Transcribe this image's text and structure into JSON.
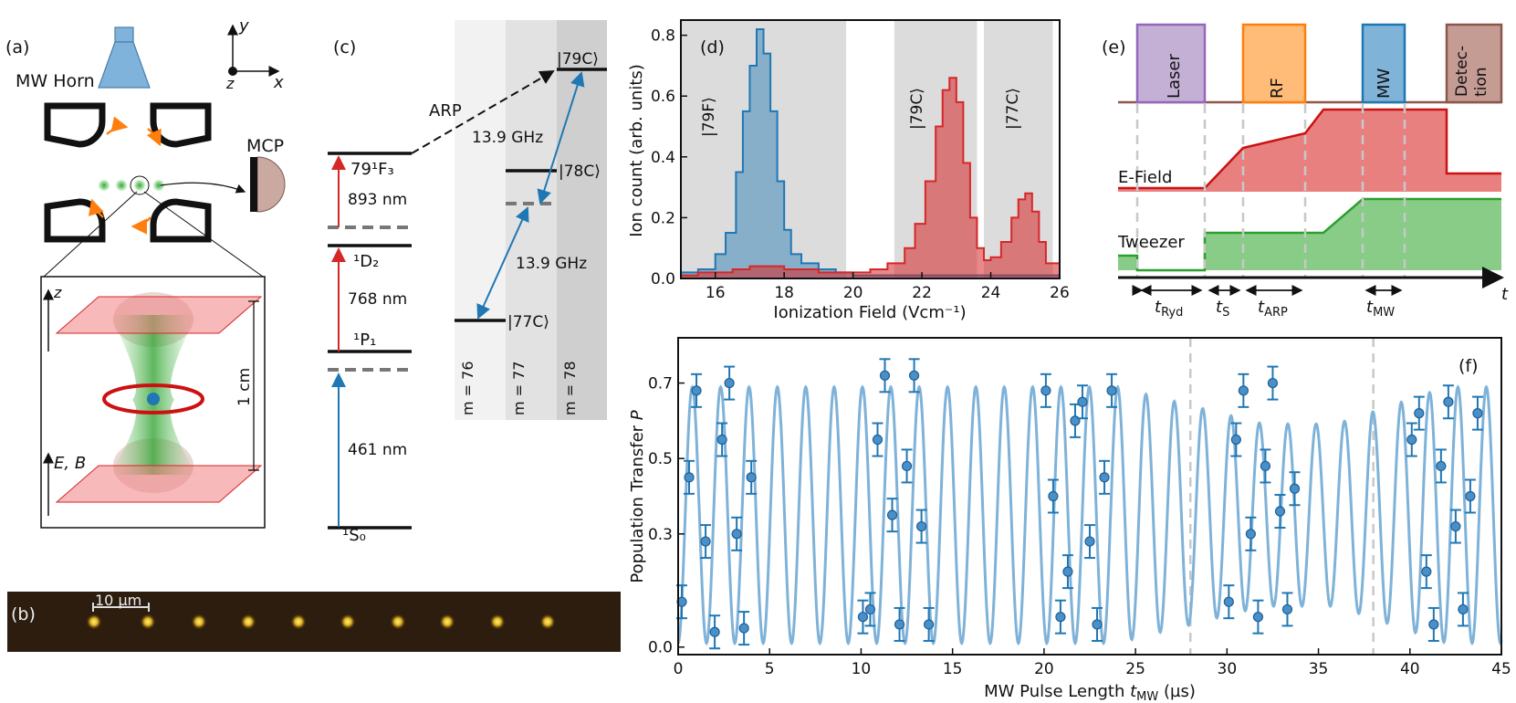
{
  "panel_labels": {
    "a": "(a)",
    "b": "(b)",
    "c": "(c)",
    "d": "(d)",
    "e": "(e)",
    "f": "(f)"
  },
  "panel_a": {
    "horn_label": "MW Horn",
    "mcp_label": "MCP",
    "axis_y": "y",
    "axis_x": "x",
    "axis_z": "z",
    "inset_axis_z": "z",
    "inset_field_label": "E, B",
    "scale_label": "1 cm"
  },
  "panel_b": {
    "scale_label": "10 µm"
  },
  "panel_c": {
    "levels": {
      "s0": "¹S₀",
      "p1": "¹P₁",
      "d2": "¹D₂",
      "f3": "79¹F₃"
    },
    "wavelengths": {
      "w1": "461 nm",
      "w2": "768 nm",
      "w3": "893 nm"
    },
    "arp_label": "ARP",
    "freq_upper": "13.9 GHz",
    "freq_lower": "13.9 GHz",
    "states": {
      "s79": "|79C⟩",
      "s78": "|78C⟩",
      "s77": "|77C⟩"
    },
    "columns": [
      "m = 76",
      "m = 77",
      "m = 78"
    ]
  },
  "panel_d": {
    "xlabel": "Ionization Field (Vcm⁻¹)",
    "ylabel": "Ion count (arb. units)",
    "xticks": [
      "16",
      "18",
      "20",
      "22",
      "24",
      "26"
    ],
    "yticks": [
      "0.0",
      "0.2",
      "0.4",
      "0.6",
      "0.8"
    ],
    "region_labels": [
      "|79F⟩",
      "|79C⟩",
      "|77C⟩"
    ]
  },
  "panel_e": {
    "pulses": [
      "Laser",
      "RF",
      "MW",
      "Detec-",
      "tion"
    ],
    "row_labels": {
      "efield": "E-Field",
      "tweezer": "Tweezer"
    },
    "time_axis": "t",
    "intervals": [
      "t",
      "Ryd",
      "t",
      "S",
      "t",
      "ARP",
      "t",
      "MW"
    ]
  },
  "panel_f": {
    "xlabel_pre": "MW Pulse Length ",
    "xlabel_var": "t",
    "xlabel_sub": "MW",
    "xlabel_unit": " (µs)",
    "ylabel_pre": "Population Transfer ",
    "ylabel_var": "P",
    "xticks": [
      "0",
      "5",
      "10",
      "15",
      "20",
      "25",
      "30",
      "35",
      "40",
      "45"
    ],
    "yticks": [
      "0.0",
      "0.3",
      "0.5",
      "0.7"
    ]
  },
  "colors": {
    "blue": "#1f77b4",
    "red": "#d62728",
    "green": "#2ca02c",
    "purple": "#9467bd",
    "orange": "#ff7f0e",
    "brown": "#8c564b"
  },
  "chart_data": [
    {
      "type": "area",
      "title": "(d)",
      "xlabel": "Ionization Field (Vcm⁻¹)",
      "ylabel": "Ion count (arb. units)",
      "xlim": [
        15,
        26
      ],
      "ylim": [
        0,
        0.85
      ],
      "shaded_regions": [
        {
          "label": "|79F⟩",
          "x": [
            15,
            19.8
          ]
        },
        {
          "label": "|79C⟩",
          "x": [
            21.2,
            23.6
          ]
        },
        {
          "label": "|77C⟩",
          "x": [
            23.8,
            25.8
          ]
        }
      ],
      "series": [
        {
          "name": "blue",
          "color": "#1f77b4",
          "x": [
            15.0,
            15.5,
            16.0,
            16.3,
            16.6,
            16.8,
            17.0,
            17.2,
            17.4,
            17.6,
            17.8,
            18.0,
            18.2,
            18.5,
            19.0,
            19.5,
            20.0,
            20.5,
            21.0,
            21.5,
            22.0,
            22.5,
            23.0,
            23.5,
            24.0,
            24.5,
            25.0,
            25.5,
            26.0
          ],
          "values": [
            0.02,
            0.03,
            0.08,
            0.15,
            0.35,
            0.55,
            0.7,
            0.82,
            0.74,
            0.55,
            0.32,
            0.16,
            0.08,
            0.05,
            0.03,
            0.02,
            0.01,
            0.01,
            0.01,
            0.01,
            0.01,
            0.01,
            0.01,
            0.01,
            0.01,
            0.01,
            0.01,
            0.01,
            0.0
          ]
        },
        {
          "name": "red",
          "color": "#d62728",
          "x": [
            15.0,
            15.5,
            16.0,
            16.5,
            17.0,
            17.5,
            18.0,
            18.5,
            19.0,
            19.5,
            20.0,
            20.5,
            21.0,
            21.5,
            21.8,
            22.1,
            22.4,
            22.6,
            22.8,
            23.0,
            23.2,
            23.4,
            23.6,
            23.8,
            24.0,
            24.3,
            24.6,
            24.8,
            25.0,
            25.2,
            25.4,
            25.6,
            26.0
          ],
          "values": [
            0.01,
            0.02,
            0.02,
            0.03,
            0.04,
            0.04,
            0.03,
            0.03,
            0.02,
            0.02,
            0.02,
            0.03,
            0.05,
            0.1,
            0.18,
            0.32,
            0.5,
            0.62,
            0.66,
            0.58,
            0.38,
            0.2,
            0.1,
            0.06,
            0.07,
            0.12,
            0.2,
            0.26,
            0.28,
            0.22,
            0.12,
            0.05,
            0.0
          ]
        }
      ]
    },
    {
      "type": "line",
      "title": "(f)",
      "xlabel": "MW Pulse Length tMW (µs)",
      "ylabel": "Population Transfer P",
      "xlim": [
        0,
        45
      ],
      "ylim": [
        -0.02,
        0.82
      ],
      "vlines": [
        28,
        38
      ],
      "fit": {
        "form": "oscillation",
        "amplitude": 0.35,
        "offset": 0.35,
        "period_us": 1.55,
        "damping": "small"
      },
      "data_segments_us": [
        [
          0,
          4
        ],
        [
          10,
          14
        ],
        [
          20,
          24
        ],
        [
          30,
          34
        ],
        [
          40,
          44
        ]
      ],
      "data_points": {
        "x": [
          0.2,
          0.6,
          1.0,
          1.5,
          2.0,
          2.4,
          2.8,
          3.2,
          3.6,
          4.0,
          10.1,
          10.5,
          10.9,
          11.3,
          11.7,
          12.1,
          12.5,
          12.9,
          13.3,
          13.7,
          20.1,
          20.5,
          20.9,
          21.3,
          21.7,
          22.1,
          22.5,
          22.9,
          23.3,
          23.7,
          30.1,
          30.5,
          30.9,
          31.3,
          31.7,
          32.1,
          32.5,
          32.9,
          33.3,
          33.7,
          40.1,
          40.5,
          40.9,
          41.3,
          41.7,
          42.1,
          42.5,
          42.9,
          43.3,
          43.7
        ],
        "values": [
          0.12,
          0.45,
          0.68,
          0.28,
          0.04,
          0.55,
          0.7,
          0.3,
          0.05,
          0.45,
          0.08,
          0.1,
          0.55,
          0.72,
          0.35,
          0.06,
          0.48,
          0.72,
          0.32,
          0.06,
          0.68,
          0.4,
          0.08,
          0.2,
          0.6,
          0.65,
          0.28,
          0.06,
          0.45,
          0.68,
          0.12,
          0.55,
          0.68,
          0.3,
          0.08,
          0.48,
          0.7,
          0.36,
          0.1,
          0.42,
          0.55,
          0.62,
          0.2,
          0.06,
          0.48,
          0.65,
          0.32,
          0.1,
          0.4,
          0.62
        ]
      }
    }
  ]
}
